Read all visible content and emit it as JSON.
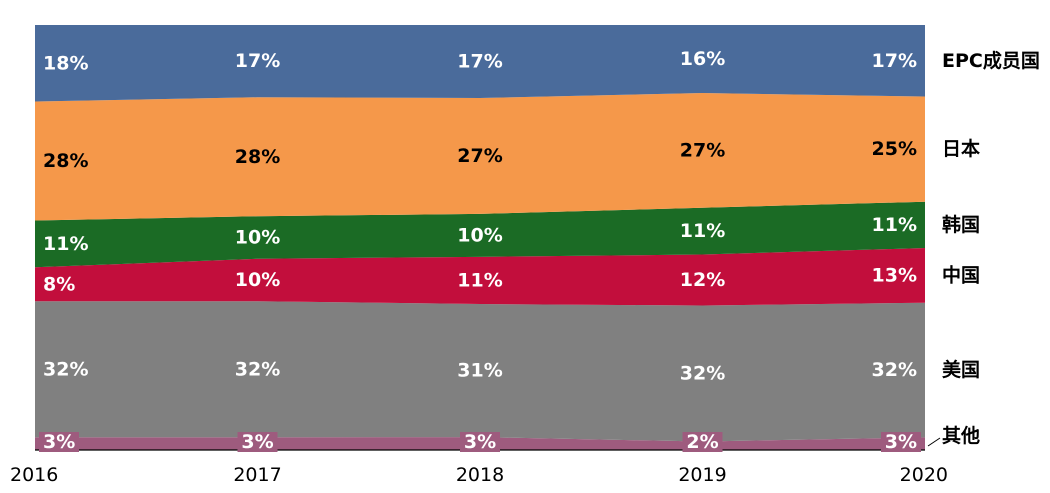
{
  "chart_data": {
    "type": "area",
    "stacked": true,
    "normalized": true,
    "title": "",
    "xlabel": "",
    "ylabel": "",
    "x": [
      "2016",
      "2017",
      "2018",
      "2019",
      "2020"
    ],
    "ylim": [
      0,
      100
    ],
    "legend_position": "right",
    "series": [
      {
        "name": "其他",
        "color": "#9e5b7e",
        "values": [
          3,
          3,
          3,
          2,
          3
        ],
        "labels": [
          "3%",
          "3%",
          "3%",
          "2%",
          "3%"
        ]
      },
      {
        "name": "美国",
        "color": "#808080",
        "values": [
          32,
          32,
          31,
          32,
          32
        ],
        "labels": [
          "32%",
          "32%",
          "31%",
          "32%",
          "32%"
        ]
      },
      {
        "name": "中国",
        "color": "#c20e3c",
        "values": [
          8,
          10,
          11,
          12,
          13
        ],
        "labels": [
          "8%",
          "10%",
          "11%",
          "12%",
          "13%"
        ]
      },
      {
        "name": "韩国",
        "color": "#1b6b25",
        "values": [
          11,
          10,
          10,
          11,
          11
        ],
        "labels": [
          "11%",
          "10%",
          "10%",
          "11%",
          "11%"
        ]
      },
      {
        "name": "日本",
        "color": "#f5984a",
        "values": [
          28,
          28,
          27,
          27,
          25
        ],
        "labels": [
          "28%",
          "28%",
          "27%",
          "27%",
          "25%"
        ]
      },
      {
        "name": "EPC成员国",
        "color": "#4a6b9b",
        "values": [
          18,
          17,
          17,
          16,
          17
        ],
        "labels": [
          "18%",
          "17%",
          "17%",
          "16%",
          "17%"
        ]
      }
    ],
    "label_colors": {
      "其他": "#ffffff",
      "美国": "#ffffff",
      "中国": "#ffffff",
      "韩国": "#ffffff",
      "日本": "#000000",
      "EPC成员国": "#ffffff"
    }
  }
}
